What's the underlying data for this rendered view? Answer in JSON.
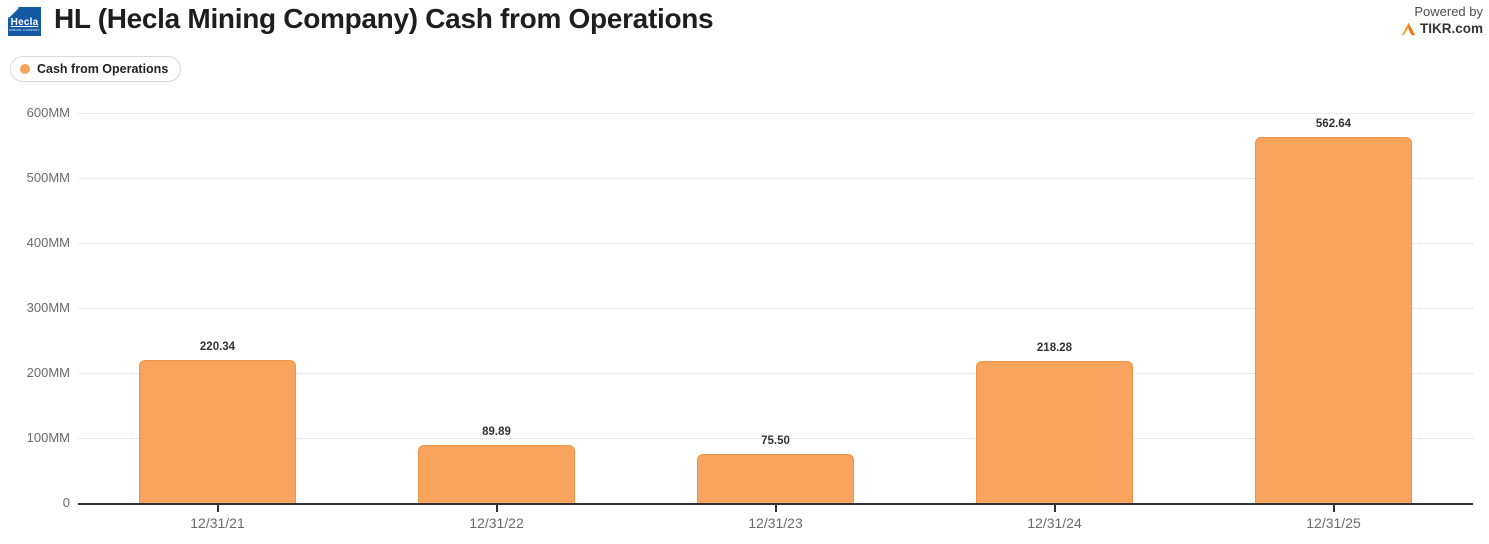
{
  "header": {
    "logo_word": "Hecla",
    "logo_subtext": "MINING COMPANY",
    "logo_bg_color": "#1459a4",
    "title": "HL (Hecla Mining Company) Cash from Operations",
    "powered_by": "Powered by",
    "brand": "TIKR.com",
    "brand_icon_color": "#f7941d"
  },
  "legend": {
    "items": [
      {
        "label": "Cash from Operations",
        "color": "#f7a35c"
      }
    ]
  },
  "chart_data": {
    "type": "bar",
    "title": "HL (Hecla Mining Company) Cash from Operations",
    "categories": [
      "12/31/21",
      "12/31/22",
      "12/31/23",
      "12/31/24",
      "12/31/25"
    ],
    "series": [
      {
        "name": "Cash from Operations",
        "values": [
          220.34,
          89.89,
          75.5,
          218.28,
          562.64
        ],
        "value_labels": [
          "220.34",
          "89.89",
          "75.50",
          "218.28",
          "562.64"
        ],
        "fill_color": "#f8a35e",
        "border_color": "#ef9446"
      }
    ],
    "xlabel": "",
    "ylabel": "",
    "ylim": [
      0,
      600
    ],
    "unit": "MM",
    "yticks": [
      {
        "value": 0,
        "label": "0"
      },
      {
        "value": 100,
        "label": "100MM"
      },
      {
        "value": 200,
        "label": "200MM"
      },
      {
        "value": 300,
        "label": "300MM"
      },
      {
        "value": 400,
        "label": "400MM"
      },
      {
        "value": 500,
        "label": "500MM"
      },
      {
        "value": 600,
        "label": "600MM"
      }
    ],
    "grid": "horizontal-dotted",
    "legend_position": "top-left",
    "value_labels_shown": true
  }
}
